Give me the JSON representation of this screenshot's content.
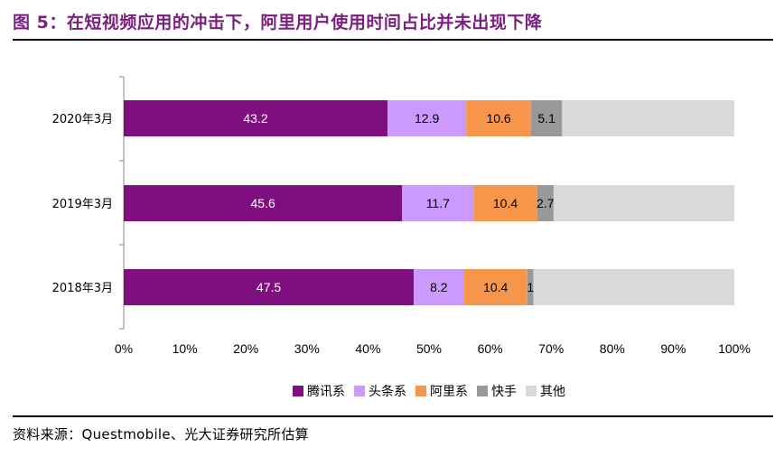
{
  "title": "图 5：在短视频应用的冲击下，阿里用户使用时间占比并未出现下降",
  "source": "资料来源：Questmobile、光大证券研究所估算",
  "chart_data": {
    "type": "bar",
    "orientation": "horizontal",
    "stacked": true,
    "categories": [
      "2020年3月",
      "2019年3月",
      "2018年3月"
    ],
    "series": [
      {
        "name": "腾讯系",
        "color": "#7f0f7e",
        "values": [
          43.2,
          45.6,
          47.5
        ],
        "labels": [
          "43.2",
          "45.6",
          "47.5"
        ]
      },
      {
        "name": "头条系",
        "color": "#cc99ff",
        "values": [
          12.9,
          11.7,
          8.2
        ],
        "labels": [
          "12.9",
          "11.7",
          "8.2"
        ]
      },
      {
        "name": "阿里系",
        "color": "#f7964a",
        "values": [
          10.6,
          10.4,
          10.4
        ],
        "labels": [
          "10.6",
          "10.4",
          "10.4"
        ]
      },
      {
        "name": "快手",
        "color": "#999999",
        "values": [
          5.1,
          2.7,
          1.0
        ],
        "labels": [
          "5.1",
          "2.7",
          "1"
        ]
      },
      {
        "name": "其他",
        "color": "#d9d9d9",
        "values": [
          28.2,
          29.6,
          32.9
        ],
        "labels": [
          "",
          "",
          ""
        ]
      }
    ],
    "xticks": [
      "0%",
      "10%",
      "20%",
      "30%",
      "40%",
      "50%",
      "60%",
      "70%",
      "80%",
      "90%",
      "100%"
    ],
    "xlim": [
      0,
      100
    ],
    "legend": "bottom",
    "grid": false
  }
}
